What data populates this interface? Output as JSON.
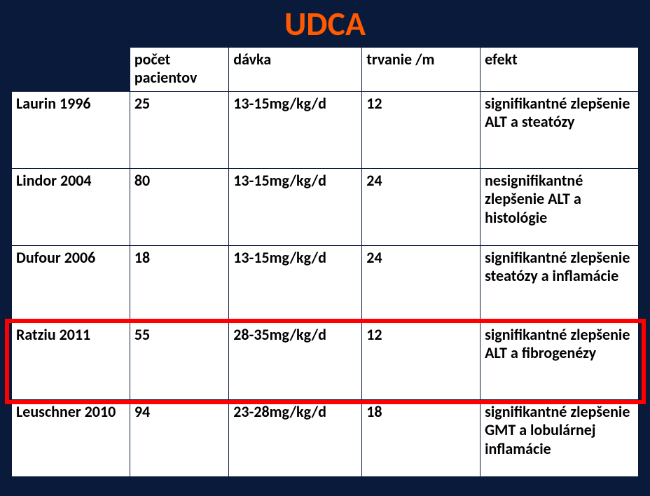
{
  "slide": {
    "title": "UDCA",
    "title_color": "#ff5a00",
    "background_color": "#0a1a3a",
    "highlight_row_index": 3,
    "highlight_border_color": "#ff0000"
  },
  "table": {
    "columns": [
      "",
      "počet pacientov",
      "dávka",
      "trvanie /m",
      "efekt"
    ],
    "rows": [
      [
        "Laurin 1996",
        "25",
        "13-15mg/kg/d",
        "12",
        "signifikantné zlepšenie ALT a steatózy"
      ],
      [
        "Lindor 2004",
        "80",
        "13-15mg/kg/d",
        "24",
        "nesignifikantné zlepšenie ALT a histológie"
      ],
      [
        "Dufour 2006",
        "18",
        "13-15mg/kg/d",
        "24",
        "signifikantné zlepšenie steatózy a inflamácie"
      ],
      [
        "Ratziu 2011",
        "55",
        "28-35mg/kg/d",
        "12",
        "signifikantné zlepšenie ALT a fibrogenézy"
      ],
      [
        "Leuschner 2010",
        "94",
        "23-28mg/kg/d",
        "18",
        "signifikantné zlepšenie GMT a lobulárnej inflamácie"
      ]
    ],
    "cell_font_size": 22,
    "cell_font_weight": "bold",
    "border_color": "#0a1a3a",
    "background_color": "#ffffff",
    "header_first_cell_bg": "#0a1a3a"
  }
}
